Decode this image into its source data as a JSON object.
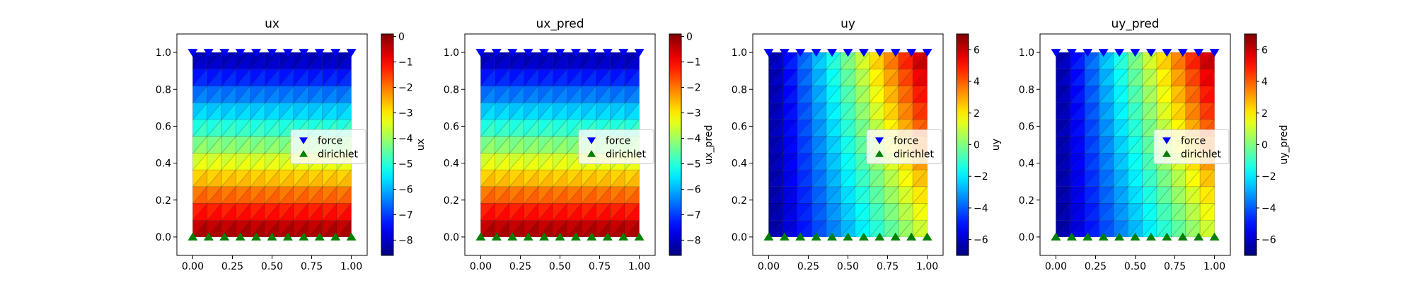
{
  "chart_data": [
    {
      "type": "heatmap",
      "title": "ux",
      "field": "ux",
      "xlim": [
        -0.1,
        1.1
      ],
      "ylim": [
        -0.1,
        1.1
      ],
      "xticks": [
        "0.00",
        "0.25",
        "0.50",
        "0.75",
        "1.00"
      ],
      "yticks": [
        "0.0",
        "0.2",
        "0.4",
        "0.6",
        "0.8",
        "1.0"
      ],
      "colorbar": {
        "label": "ux",
        "range": [
          -8.6,
          0.1
        ],
        "ticks": [
          "0",
          "−1",
          "−2",
          "−3",
          "−4",
          "−5",
          "−6",
          "−7",
          "−8"
        ],
        "tick_values": [
          0,
          -1,
          -2,
          -3,
          -4,
          -5,
          -6,
          -7,
          -8
        ],
        "cmap": "jet"
      },
      "legend": {
        "position": "center-right",
        "entries": [
          "force",
          "dirichlet"
        ]
      }
    },
    {
      "type": "heatmap",
      "title": "ux_pred",
      "field": "ux",
      "xlim": [
        -0.1,
        1.1
      ],
      "ylim": [
        -0.1,
        1.1
      ],
      "xticks": [
        "0.00",
        "0.25",
        "0.50",
        "0.75",
        "1.00"
      ],
      "yticks": [
        "0.0",
        "0.2",
        "0.4",
        "0.6",
        "0.8",
        "1.0"
      ],
      "colorbar": {
        "label": "ux_pred",
        "range": [
          -8.6,
          0.1
        ],
        "ticks": [
          "0",
          "−1",
          "−2",
          "−3",
          "−4",
          "−5",
          "−6",
          "−7",
          "−8"
        ],
        "tick_values": [
          0,
          -1,
          -2,
          -3,
          -4,
          -5,
          -6,
          -7,
          -8
        ],
        "cmap": "jet"
      },
      "legend": {
        "position": "center-right",
        "entries": [
          "force",
          "dirichlet"
        ]
      }
    },
    {
      "type": "heatmap",
      "title": "uy",
      "field": "uy",
      "xlim": [
        -0.1,
        1.1
      ],
      "ylim": [
        -0.1,
        1.1
      ],
      "xticks": [
        "0.00",
        "0.25",
        "0.50",
        "0.75",
        "1.00"
      ],
      "yticks": [
        "0.0",
        "0.2",
        "0.4",
        "0.6",
        "0.8",
        "1.0"
      ],
      "colorbar": {
        "label": "uy",
        "range": [
          -7,
          7
        ],
        "ticks": [
          "6",
          "4",
          "2",
          "0",
          "−2",
          "−4",
          "−6"
        ],
        "tick_values": [
          6,
          4,
          2,
          0,
          -2,
          -4,
          -6
        ],
        "cmap": "jet"
      },
      "legend": {
        "position": "center-right",
        "entries": [
          "force",
          "dirichlet"
        ]
      }
    },
    {
      "type": "heatmap",
      "title": "uy_pred",
      "field": "uy",
      "xlim": [
        -0.1,
        1.1
      ],
      "ylim": [
        -0.1,
        1.1
      ],
      "xticks": [
        "0.00",
        "0.25",
        "0.50",
        "0.75",
        "1.00"
      ],
      "yticks": [
        "0.0",
        "0.2",
        "0.4",
        "0.6",
        "0.8",
        "1.0"
      ],
      "colorbar": {
        "label": "uy_pred",
        "range": [
          -7,
          7
        ],
        "ticks": [
          "6",
          "4",
          "2",
          "0",
          "−2",
          "−4",
          "−6"
        ],
        "tick_values": [
          6,
          4,
          2,
          0,
          -2,
          -4,
          -6
        ],
        "cmap": "jet"
      },
      "legend": {
        "position": "center-right",
        "entries": [
          "force",
          "dirichlet"
        ]
      }
    }
  ],
  "markers": {
    "force": {
      "y": 1.0,
      "x": [
        0,
        0.1,
        0.2,
        0.3,
        0.4,
        0.5,
        0.6,
        0.7,
        0.8,
        0.9,
        1.0
      ],
      "shape": "triangle-down",
      "color": "#0000ff"
    },
    "dirichlet": {
      "y": 0.0,
      "x": [
        0,
        0.1,
        0.2,
        0.3,
        0.4,
        0.5,
        0.6,
        0.7,
        0.8,
        0.9,
        1.0
      ],
      "shape": "triangle-up",
      "color": "#008000"
    }
  }
}
